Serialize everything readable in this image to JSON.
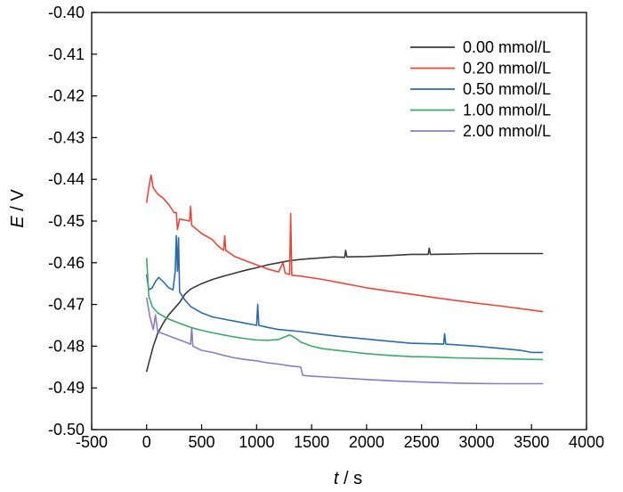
{
  "chart_data": {
    "type": "line",
    "xlabel": {
      "italic": "t",
      "rest": " / s"
    },
    "ylabel": {
      "italic": "E",
      "rest": " / V"
    },
    "xlim": [
      -500,
      4000
    ],
    "ylim": [
      -0.5,
      -0.4
    ],
    "x_ticks": [
      -500,
      0,
      500,
      1000,
      1500,
      2000,
      2500,
      3000,
      3500,
      4000
    ],
    "x_tick_labels": [
      "-500",
      "0",
      "500",
      "1000",
      "1500",
      "2000",
      "2500",
      "3000",
      "3500",
      "4000"
    ],
    "y_ticks": [
      -0.4,
      -0.41,
      -0.42,
      -0.43,
      -0.44,
      -0.45,
      -0.46,
      -0.47,
      -0.48,
      -0.49,
      -0.5
    ],
    "y_tick_labels": [
      "-0.40",
      "-0.41",
      "-0.42",
      "-0.43",
      "-0.44",
      "-0.45",
      "-0.46",
      "-0.47",
      "-0.48",
      "-0.49",
      "-0.50"
    ],
    "grid": false,
    "legend_position": "top-right",
    "series": [
      {
        "name": "0.00 mmol/L",
        "color": "#3a3a3a",
        "points": [
          [
            0,
            -0.486
          ],
          [
            30,
            -0.483
          ],
          [
            60,
            -0.48
          ],
          [
            100,
            -0.477
          ],
          [
            150,
            -0.4745
          ],
          [
            200,
            -0.4725
          ],
          [
            250,
            -0.471
          ],
          [
            300,
            -0.4695
          ],
          [
            350,
            -0.4675
          ],
          [
            400,
            -0.4663
          ],
          [
            500,
            -0.465
          ],
          [
            600,
            -0.464
          ],
          [
            700,
            -0.4632
          ],
          [
            800,
            -0.4625
          ],
          [
            900,
            -0.4618
          ],
          [
            1000,
            -0.4612
          ],
          [
            1100,
            -0.4605
          ],
          [
            1200,
            -0.46
          ],
          [
            1300,
            -0.4595
          ],
          [
            1400,
            -0.4592
          ],
          [
            1500,
            -0.459
          ],
          [
            1600,
            -0.4588
          ],
          [
            1700,
            -0.4586
          ],
          [
            1800,
            -0.4587
          ],
          [
            1810,
            -0.457
          ],
          [
            1820,
            -0.4586
          ],
          [
            2000,
            -0.4585
          ],
          [
            2200,
            -0.4583
          ],
          [
            2400,
            -0.458
          ],
          [
            2560,
            -0.458
          ],
          [
            2570,
            -0.4565
          ],
          [
            2580,
            -0.458
          ],
          [
            2800,
            -0.4579
          ],
          [
            3000,
            -0.4578
          ],
          [
            3200,
            -0.4578
          ],
          [
            3400,
            -0.4578
          ],
          [
            3600,
            -0.4578
          ]
        ]
      },
      {
        "name": "0.20 mmol/L",
        "color": "#e8483a",
        "points": [
          [
            0,
            -0.4455
          ],
          [
            20,
            -0.442
          ],
          [
            40,
            -0.439
          ],
          [
            60,
            -0.442
          ],
          [
            100,
            -0.4435
          ],
          [
            150,
            -0.4445
          ],
          [
            200,
            -0.446
          ],
          [
            250,
            -0.448
          ],
          [
            270,
            -0.448
          ],
          [
            280,
            -0.452
          ],
          [
            300,
            -0.4495
          ],
          [
            390,
            -0.45
          ],
          [
            400,
            -0.4465
          ],
          [
            410,
            -0.451
          ],
          [
            500,
            -0.453
          ],
          [
            600,
            -0.4545
          ],
          [
            650,
            -0.456
          ],
          [
            700,
            -0.457
          ],
          [
            710,
            -0.4535
          ],
          [
            720,
            -0.457
          ],
          [
            800,
            -0.4585
          ],
          [
            900,
            -0.4595
          ],
          [
            1000,
            -0.4605
          ],
          [
            1100,
            -0.4615
          ],
          [
            1200,
            -0.4622
          ],
          [
            1240,
            -0.46
          ],
          [
            1260,
            -0.4625
          ],
          [
            1300,
            -0.4628
          ],
          [
            1310,
            -0.4482
          ],
          [
            1320,
            -0.463
          ],
          [
            1400,
            -0.4632
          ],
          [
            1600,
            -0.464
          ],
          [
            1800,
            -0.465
          ],
          [
            2000,
            -0.466
          ],
          [
            2200,
            -0.4668
          ],
          [
            2400,
            -0.4675
          ],
          [
            2600,
            -0.4683
          ],
          [
            2800,
            -0.469
          ],
          [
            3000,
            -0.4697
          ],
          [
            3200,
            -0.4703
          ],
          [
            3400,
            -0.471
          ],
          [
            3600,
            -0.4717
          ]
        ]
      },
      {
        "name": "0.50 mmol/L",
        "color": "#2c6aad",
        "points": [
          [
            0,
            -0.463
          ],
          [
            20,
            -0.4665
          ],
          [
            50,
            -0.466
          ],
          [
            80,
            -0.4645
          ],
          [
            110,
            -0.4635
          ],
          [
            150,
            -0.4645
          ],
          [
            200,
            -0.466
          ],
          [
            240,
            -0.4665
          ],
          [
            260,
            -0.462
          ],
          [
            270,
            -0.4535
          ],
          [
            280,
            -0.462
          ],
          [
            290,
            -0.454
          ],
          [
            300,
            -0.467
          ],
          [
            350,
            -0.469
          ],
          [
            400,
            -0.4705
          ],
          [
            500,
            -0.472
          ],
          [
            600,
            -0.473
          ],
          [
            700,
            -0.4735
          ],
          [
            800,
            -0.474
          ],
          [
            900,
            -0.4745
          ],
          [
            1000,
            -0.475
          ],
          [
            1010,
            -0.47
          ],
          [
            1020,
            -0.475
          ],
          [
            1100,
            -0.4755
          ],
          [
            1200,
            -0.476
          ],
          [
            1400,
            -0.4765
          ],
          [
            1600,
            -0.4772
          ],
          [
            1800,
            -0.4778
          ],
          [
            2000,
            -0.4783
          ],
          [
            2200,
            -0.4788
          ],
          [
            2400,
            -0.4793
          ],
          [
            2700,
            -0.4795
          ],
          [
            2710,
            -0.477
          ],
          [
            2720,
            -0.4795
          ],
          [
            3000,
            -0.48
          ],
          [
            3200,
            -0.4805
          ],
          [
            3400,
            -0.481
          ],
          [
            3500,
            -0.4815
          ],
          [
            3600,
            -0.4815
          ]
        ]
      },
      {
        "name": "1.00 mmol/L",
        "color": "#3aaa6a",
        "points": [
          [
            0,
            -0.459
          ],
          [
            20,
            -0.468
          ],
          [
            50,
            -0.4705
          ],
          [
            100,
            -0.472
          ],
          [
            200,
            -0.4735
          ],
          [
            300,
            -0.4745
          ],
          [
            400,
            -0.4755
          ],
          [
            500,
            -0.4762
          ],
          [
            600,
            -0.4768
          ],
          [
            700,
            -0.4773
          ],
          [
            800,
            -0.4778
          ],
          [
            900,
            -0.4782
          ],
          [
            1000,
            -0.4785
          ],
          [
            1100,
            -0.4786
          ],
          [
            1200,
            -0.4784
          ],
          [
            1300,
            -0.4773
          ],
          [
            1350,
            -0.478
          ],
          [
            1400,
            -0.479
          ],
          [
            1500,
            -0.48
          ],
          [
            1600,
            -0.4806
          ],
          [
            1800,
            -0.4812
          ],
          [
            2000,
            -0.4818
          ],
          [
            2200,
            -0.4822
          ],
          [
            2400,
            -0.4825
          ],
          [
            2600,
            -0.4826
          ],
          [
            2800,
            -0.4828
          ],
          [
            3000,
            -0.4829
          ],
          [
            3200,
            -0.483
          ],
          [
            3400,
            -0.4831
          ],
          [
            3600,
            -0.4832
          ]
        ]
      },
      {
        "name": "2.00 mmol/L",
        "color": "#8b7bc4",
        "points": [
          [
            0,
            -0.4685
          ],
          [
            30,
            -0.473
          ],
          [
            60,
            -0.476
          ],
          [
            80,
            -0.4725
          ],
          [
            100,
            -0.4765
          ],
          [
            150,
            -0.477
          ],
          [
            200,
            -0.4775
          ],
          [
            300,
            -0.4785
          ],
          [
            400,
            -0.4795
          ],
          [
            410,
            -0.4755
          ],
          [
            420,
            -0.48
          ],
          [
            500,
            -0.481
          ],
          [
            600,
            -0.4815
          ],
          [
            700,
            -0.4822
          ],
          [
            800,
            -0.4828
          ],
          [
            900,
            -0.4832
          ],
          [
            1000,
            -0.4835
          ],
          [
            1100,
            -0.484
          ],
          [
            1200,
            -0.4843
          ],
          [
            1300,
            -0.4847
          ],
          [
            1400,
            -0.485
          ],
          [
            1420,
            -0.487
          ],
          [
            1500,
            -0.4872
          ],
          [
            1700,
            -0.4875
          ],
          [
            2000,
            -0.488
          ],
          [
            2300,
            -0.4884
          ],
          [
            2600,
            -0.4887
          ],
          [
            2900,
            -0.4889
          ],
          [
            3200,
            -0.489
          ],
          [
            3600,
            -0.489
          ]
        ]
      }
    ]
  }
}
